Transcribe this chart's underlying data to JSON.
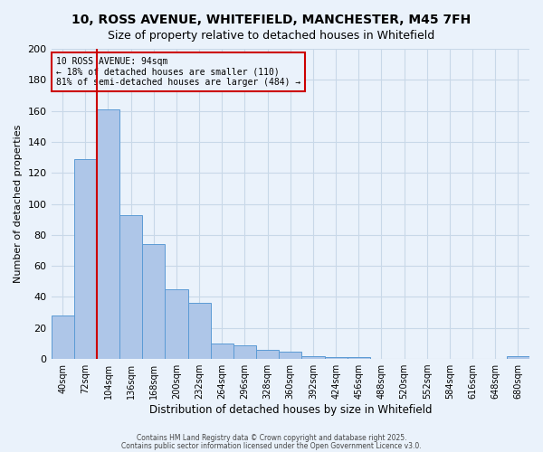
{
  "title_line1": "10, ROSS AVENUE, WHITEFIELD, MANCHESTER, M45 7FH",
  "title_line2": "Size of property relative to detached houses in Whitefield",
  "bar_values": [
    28,
    129,
    161,
    93,
    74,
    45,
    36,
    10,
    9,
    6,
    5,
    2,
    1,
    1,
    0,
    0,
    0,
    0,
    0,
    0,
    2
  ],
  "bin_labels": [
    "40sqm",
    "72sqm",
    "104sqm",
    "136sqm",
    "168sqm",
    "200sqm",
    "232sqm",
    "264sqm",
    "296sqm",
    "328sqm",
    "360sqm",
    "392sqm",
    "424sqm",
    "456sqm",
    "488sqm",
    "520sqm",
    "552sqm",
    "584sqm",
    "616sqm",
    "648sqm",
    "680sqm"
  ],
  "bar_color": "#aec6e8",
  "bar_edge_color": "#5b9bd5",
  "grid_color": "#c8d8e8",
  "background_color": "#eaf2fb",
  "ylabel": "Number of detached properties",
  "xlabel": "Distribution of detached houses by size in Whitefield",
  "vline_x": 2.0,
  "vline_color": "#cc0000",
  "annotation_title": "10 ROSS AVENUE: 94sqm",
  "annotation_line1": "← 18% of detached houses are smaller (110)",
  "annotation_line2": "81% of semi-detached houses are larger (484) →",
  "annotation_box_color": "#cc0000",
  "ylim": [
    0,
    200
  ],
  "yticks": [
    0,
    20,
    40,
    60,
    80,
    100,
    120,
    140,
    160,
    180,
    200
  ],
  "footer_line1": "Contains HM Land Registry data © Crown copyright and database right 2025.",
  "footer_line2": "Contains public sector information licensed under the Open Government Licence v3.0."
}
